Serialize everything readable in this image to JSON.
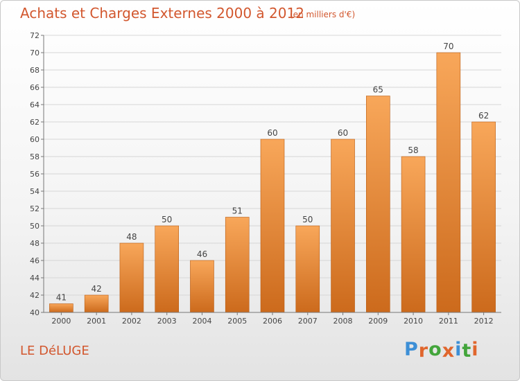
{
  "header": {
    "title": "Achats et Charges Externes 2000 à 2012",
    "subtitle": "(en milliers d'€)"
  },
  "footer": {
    "location": "LE DéLUGE",
    "logo_text": "Proxiti",
    "logo_colors": [
      "#3d8fd6",
      "#e0662d",
      "#43a53b",
      "#e0662d",
      "#3d8fd6",
      "#43a53b",
      "#e0662d"
    ]
  },
  "colors": {
    "accent": "#d2572e",
    "bar_top": "#f8a75a",
    "bar_bottom": "#cc6a1c",
    "bar_border": "#b85c14"
  },
  "chart_data": {
    "type": "bar",
    "title": "Achats et Charges Externes 2000 à 2012",
    "subtitle": "(en milliers d'€)",
    "categories": [
      "2000",
      "2001",
      "2002",
      "2003",
      "2004",
      "2005",
      "2006",
      "2007",
      "2008",
      "2009",
      "2010",
      "2011",
      "2012"
    ],
    "values": [
      41,
      42,
      48,
      50,
      46,
      51,
      60,
      50,
      60,
      65,
      58,
      70,
      62
    ],
    "ylim": [
      40,
      72
    ],
    "yticks": [
      40,
      42,
      44,
      46,
      48,
      50,
      52,
      54,
      56,
      58,
      60,
      62,
      64,
      66,
      68,
      70,
      72
    ],
    "grid": true,
    "data_labels": true
  }
}
